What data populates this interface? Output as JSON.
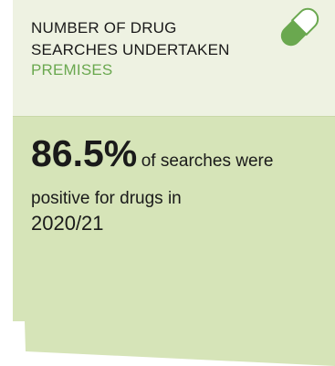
{
  "card": {
    "title_line1": "NUMBER OF DRUG",
    "title_line2": "SEARCHES UNDERTAKEN",
    "subtitle": "PREMISES",
    "icon": "pill-icon",
    "stat_value": "86.5%",
    "stat_text_inline": "of searches were",
    "stat_text_line2": "positive for drugs in",
    "stat_text_line3": "2020/21"
  },
  "colors": {
    "header_bg": "#eef2e2",
    "body_bg": "#d6e4b8",
    "accent_green": "#6aa84f"
  }
}
